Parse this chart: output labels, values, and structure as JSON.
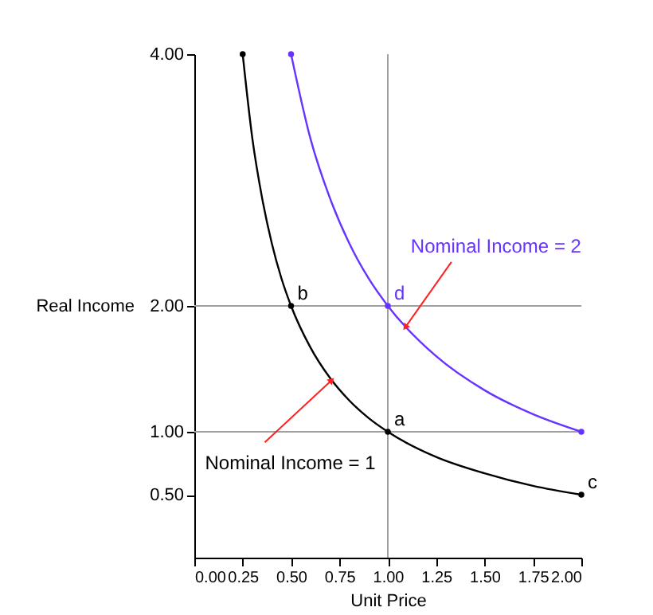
{
  "chart_data": {
    "type": "line",
    "xlabel": "Unit Price",
    "ylabel": "Real Income",
    "xlim": [
      0,
      2
    ],
    "ylim": [
      0,
      4
    ],
    "xticks": [
      {
        "value": 0,
        "label": "0.00"
      },
      {
        "value": 0.25,
        "label": "0.25"
      },
      {
        "value": 0.5,
        "label": "0.50"
      },
      {
        "value": 0.75,
        "label": "0.75"
      },
      {
        "value": 1,
        "label": "1.00"
      },
      {
        "value": 1.25,
        "label": "1.25"
      },
      {
        "value": 1.5,
        "label": "1.50"
      },
      {
        "value": 1.75,
        "label": "1.75"
      },
      {
        "value": 2,
        "label": "2.00"
      }
    ],
    "yticks": [
      {
        "value": 0.5,
        "label": "0.50"
      },
      {
        "value": 1,
        "label": "1.00"
      },
      {
        "value": 2,
        "label": "2.00"
      },
      {
        "value": 4,
        "label": "4.00"
      }
    ],
    "grid": false,
    "series": [
      {
        "color": "#000000",
        "x": [
          0.25,
          0.3,
          0.35,
          0.4,
          0.45,
          0.5,
          0.6,
          0.7,
          0.8,
          0.9,
          1,
          1.25,
          1.5,
          1.75,
          2
        ],
        "values": [
          4,
          3.33,
          2.86,
          2.5,
          2.22,
          2,
          1.67,
          1.43,
          1.25,
          1.11,
          1,
          0.8,
          0.67,
          0.57,
          0.5
        ]
      },
      {
        "color": "#6633ff",
        "x": [
          0.5,
          0.6,
          0.7,
          0.8,
          0.9,
          1,
          1.25,
          1.5,
          1.75,
          2
        ],
        "values": [
          4,
          3.33,
          2.86,
          2.5,
          2.22,
          2,
          1.6,
          1.33,
          1.14,
          1
        ]
      },
      {
        "type": "scatter",
        "marker": "circle",
        "color": "#000000",
        "x": [
          0.25,
          0.5,
          1,
          2
        ],
        "values": [
          4,
          2,
          1,
          0.5
        ]
      },
      {
        "type": "scatter",
        "marker": "circle",
        "color": "#6633ff",
        "x": [
          0.5,
          1,
          2
        ],
        "values": [
          4,
          2,
          1
        ]
      }
    ],
    "ref_lines": [
      {
        "axis": "x",
        "value": 1,
        "color": "#a0a0a0"
      },
      {
        "axis": "y",
        "value": 1,
        "color": "#a0a0a0"
      },
      {
        "axis": "y",
        "value": 2,
        "color": "#a0a0a0"
      }
    ],
    "annotations": [
      {
        "text": "a",
        "x": 1,
        "y": 1
      },
      {
        "text": "b",
        "x": 0.5,
        "y": 2
      },
      {
        "text": "c",
        "x": 2,
        "y": 0.5
      },
      {
        "text": "d",
        "x": 1,
        "y": 2
      },
      {
        "text": "Nominal Income = 1",
        "x": 0.71,
        "y": 1.41
      },
      {
        "text": "Nominal Income = 2",
        "x": 1.09,
        "y": 1.83
      }
    ]
  }
}
